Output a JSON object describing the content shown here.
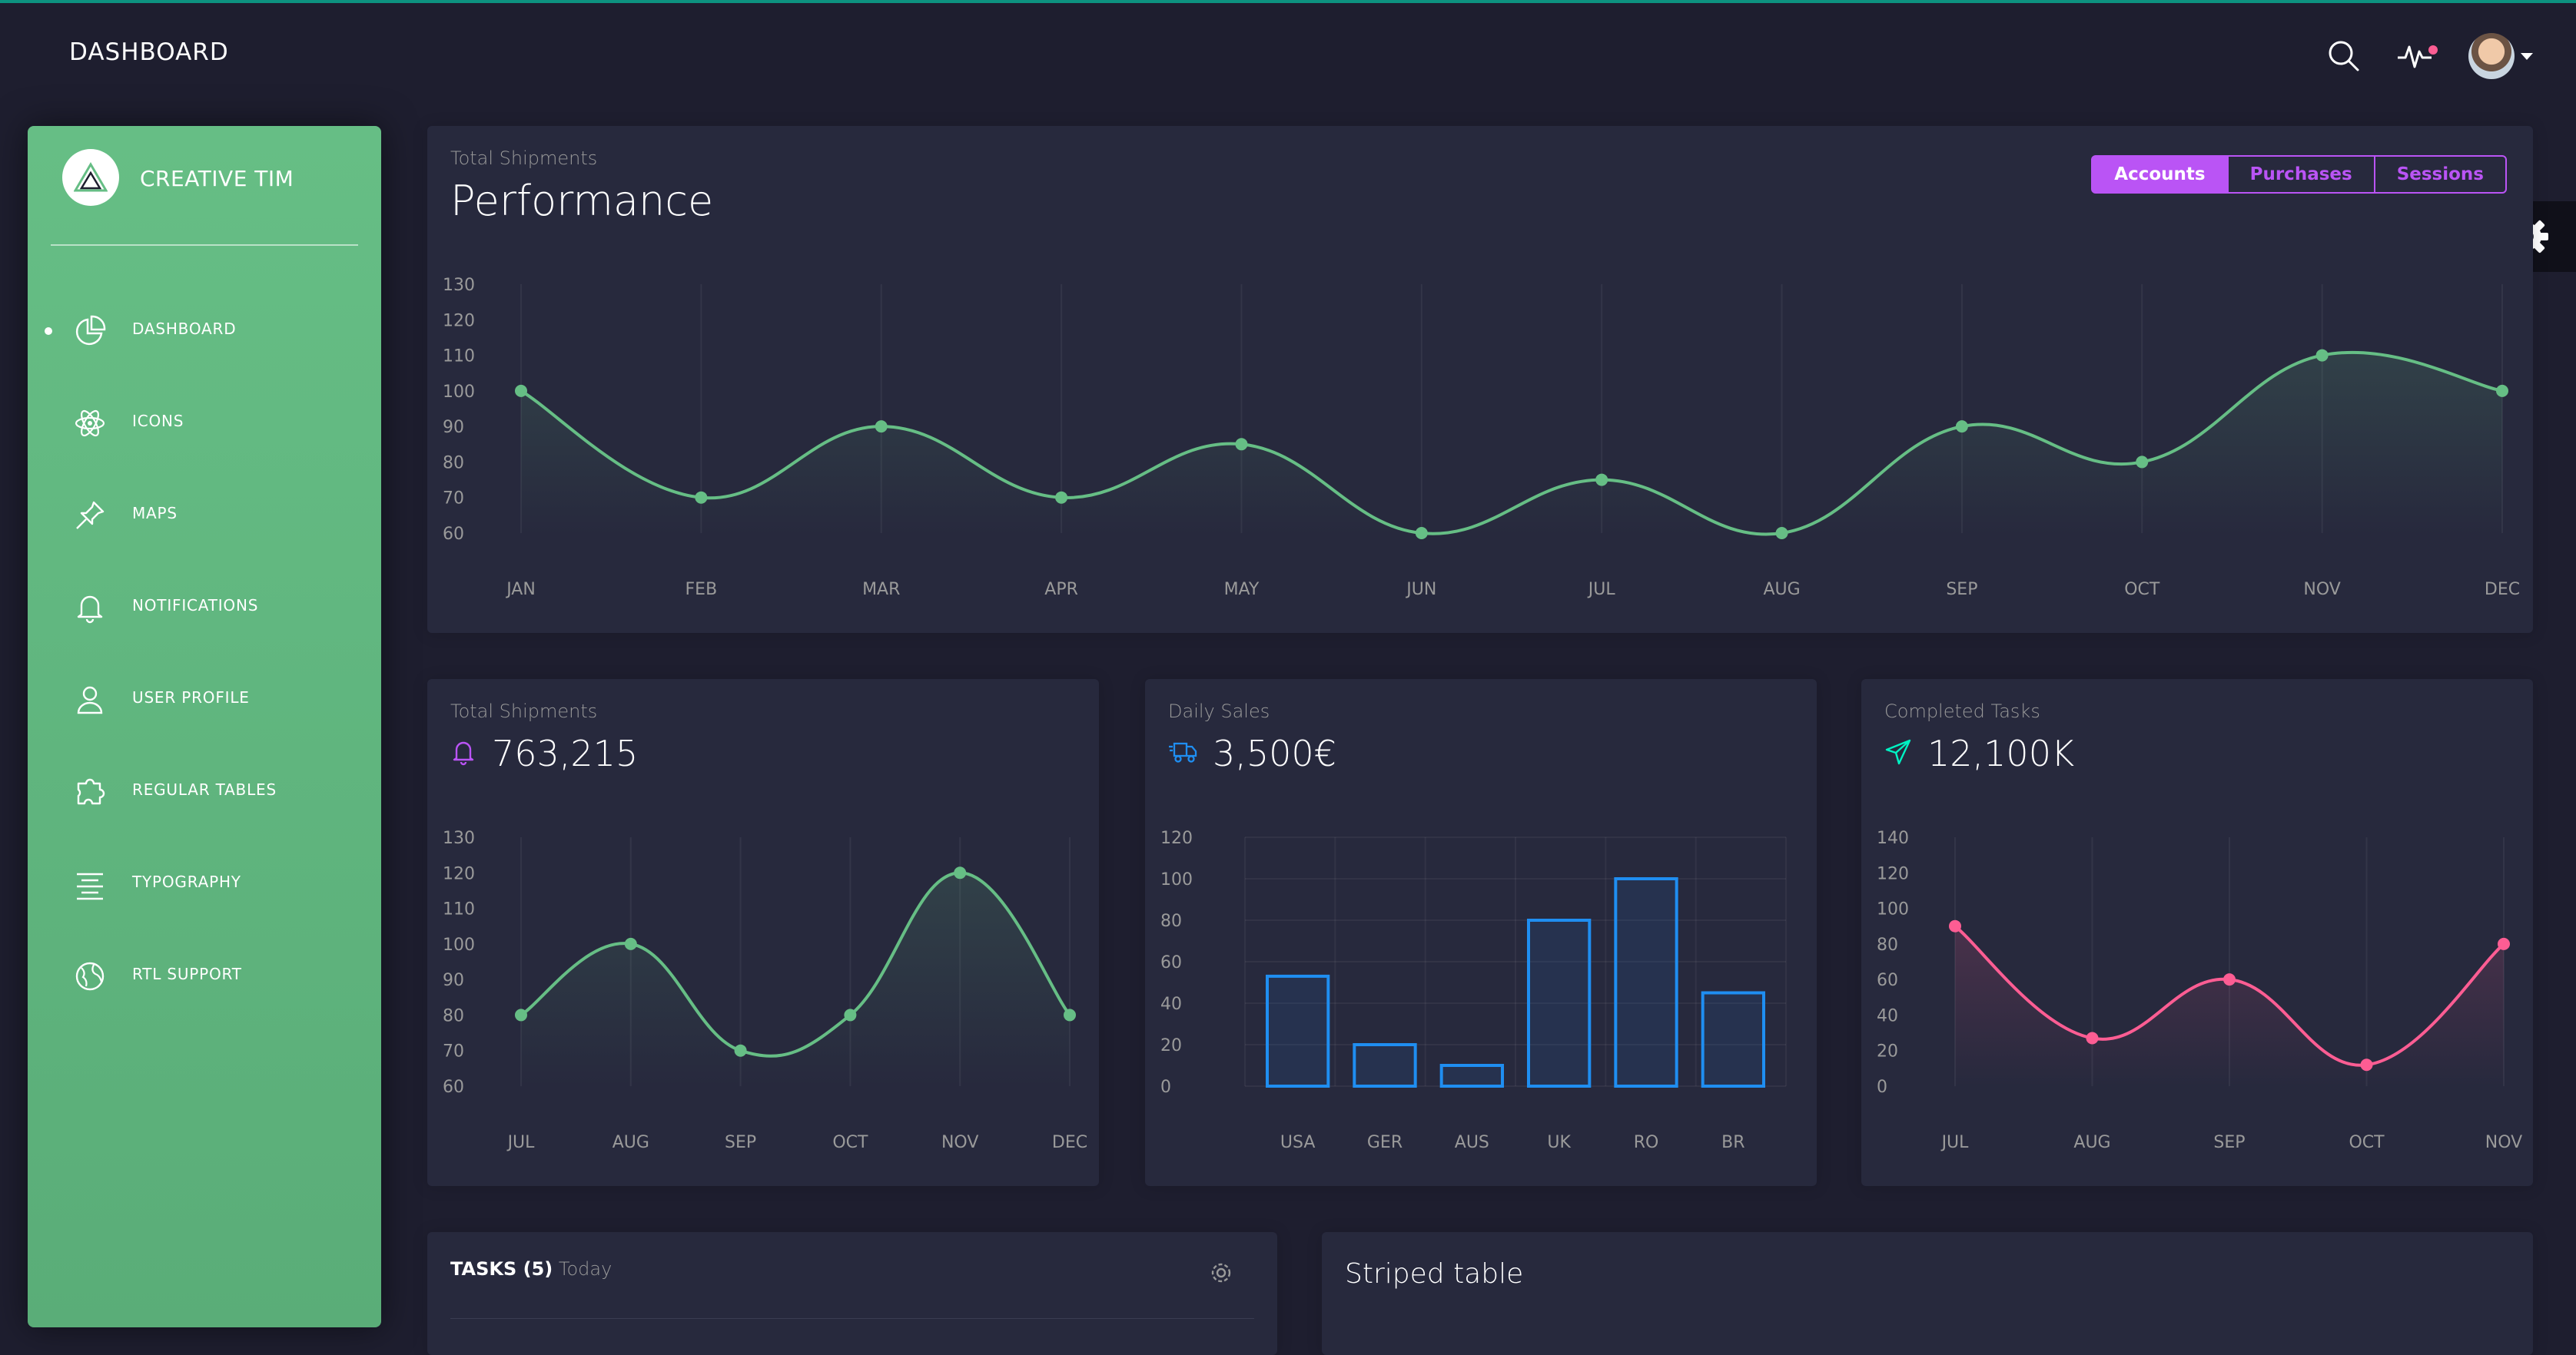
{
  "navbar": {
    "brand": "DASHBOARD"
  },
  "sidebar": {
    "logo_text": "CREATIVE TIM",
    "items": [
      {
        "label": "DASHBOARD",
        "icon": "pie-chart-icon",
        "active": true
      },
      {
        "label": "ICONS",
        "icon": "atom-icon"
      },
      {
        "label": "MAPS",
        "icon": "pin-icon"
      },
      {
        "label": "NOTIFICATIONS",
        "icon": "bell-icon"
      },
      {
        "label": "USER PROFILE",
        "icon": "user-icon"
      },
      {
        "label": "REGULAR TABLES",
        "icon": "puzzle-icon"
      },
      {
        "label": "TYPOGRAPHY",
        "icon": "align-center-icon"
      },
      {
        "label": "RTL SUPPORT",
        "icon": "globe-icon"
      }
    ]
  },
  "performance": {
    "category": "Total Shipments",
    "title": "Performance",
    "buttons": [
      "Accounts",
      "Purchases",
      "Sessions"
    ],
    "active_button": "Accounts"
  },
  "shipments": {
    "category": "Total Shipments",
    "value": "763,215"
  },
  "daily_sales": {
    "category": "Daily Sales",
    "value": "3,500€"
  },
  "completed": {
    "category": "Completed Tasks",
    "value": "12,100K"
  },
  "tasks": {
    "title": "TASKS (5)",
    "subtitle": "Today"
  },
  "striped": {
    "title": "Striped table"
  },
  "colors": {
    "primary": "#ba54f5",
    "green": "#66be85",
    "blue": "#1f8ef1",
    "pink": "#fd5d93",
    "bg": "#1e1e2f",
    "card": "#27293d"
  },
  "chart_data": [
    {
      "type": "line",
      "categories": [
        "JAN",
        "FEB",
        "MAR",
        "APR",
        "MAY",
        "JUN",
        "JUL",
        "AUG",
        "SEP",
        "OCT",
        "NOV",
        "DEC"
      ],
      "values": [
        100,
        70,
        90,
        70,
        85,
        60,
        75,
        60,
        90,
        80,
        110,
        100
      ],
      "yticks": [
        60,
        70,
        80,
        90,
        100,
        110,
        120,
        130
      ],
      "ylim": [
        60,
        130
      ],
      "color": "#66be85"
    },
    {
      "type": "line",
      "categories": [
        "JUL",
        "AUG",
        "SEP",
        "OCT",
        "NOV",
        "DEC"
      ],
      "values": [
        80,
        100,
        70,
        80,
        120,
        80
      ],
      "yticks": [
        60,
        70,
        80,
        90,
        100,
        110,
        120,
        130
      ],
      "ylim": [
        60,
        130
      ],
      "color": "#66be85"
    },
    {
      "type": "bar",
      "categories": [
        "USA",
        "GER",
        "AUS",
        "UK",
        "RO",
        "BR"
      ],
      "values": [
        53,
        20,
        10,
        80,
        100,
        45
      ],
      "yticks": [
        0,
        20,
        40,
        60,
        80,
        100,
        120
      ],
      "ylim": [
        0,
        120
      ],
      "color": "#1f8ef1"
    },
    {
      "type": "line",
      "categories": [
        "JUL",
        "AUG",
        "SEP",
        "OCT",
        "NOV"
      ],
      "values": [
        90,
        27,
        60,
        12,
        80
      ],
      "yticks": [
        0,
        20,
        40,
        60,
        80,
        100,
        120,
        140
      ],
      "ylim": [
        0,
        140
      ],
      "color": "#fd5d93"
    }
  ]
}
